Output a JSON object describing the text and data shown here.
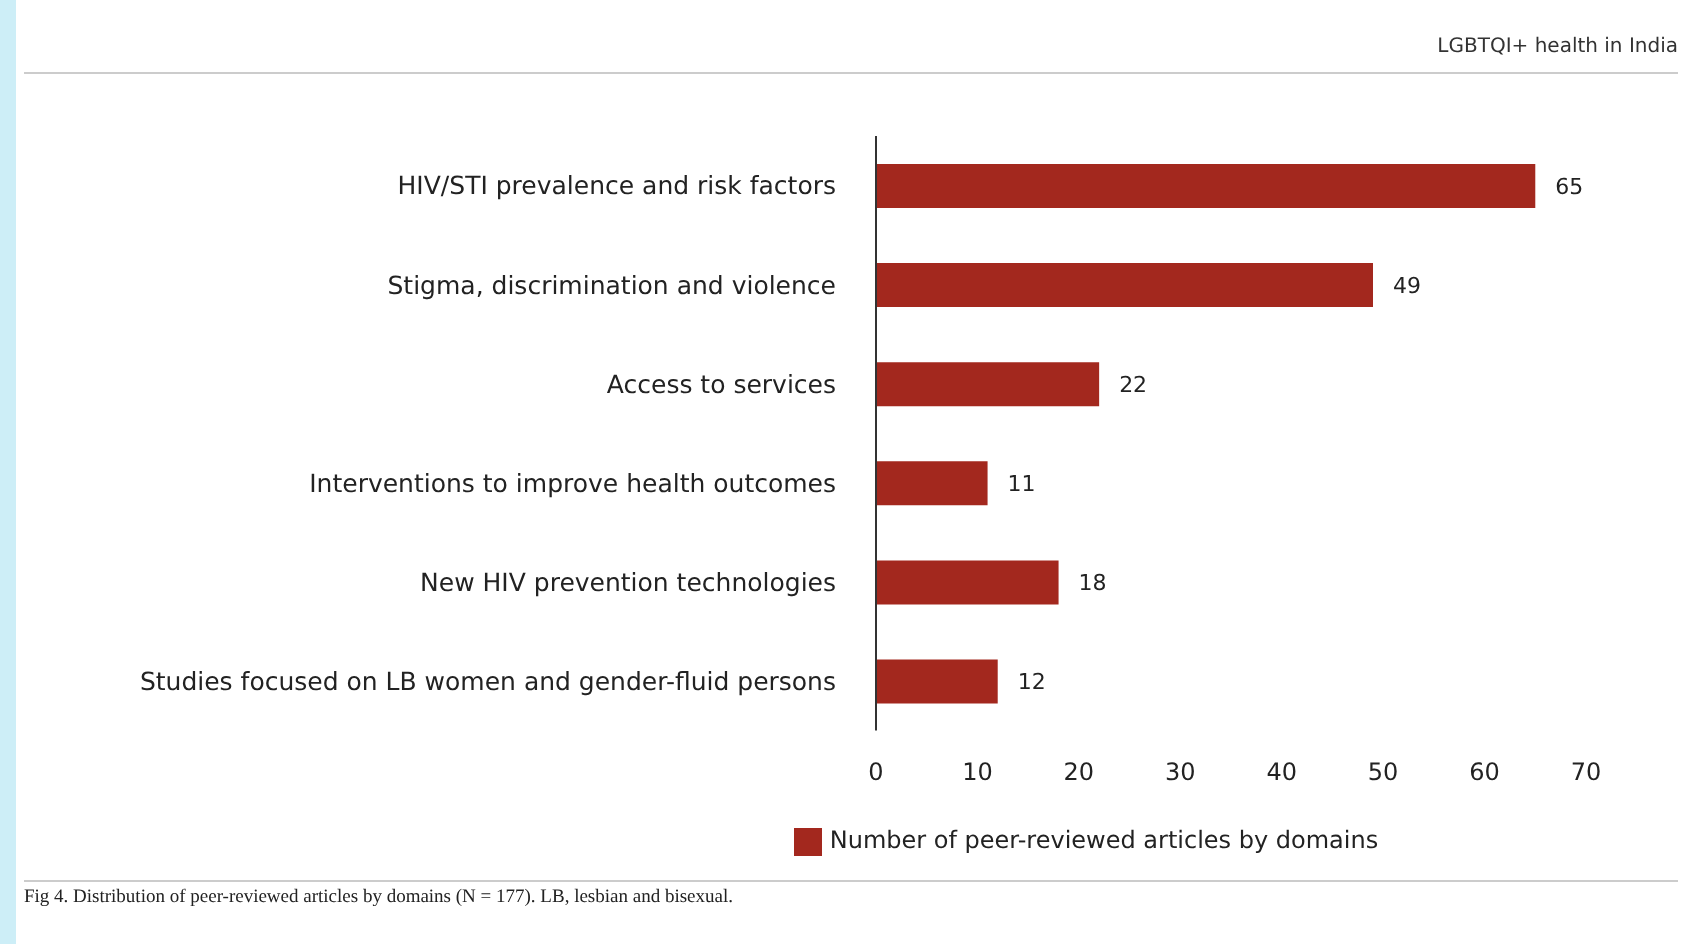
{
  "chart_data": {
    "type": "bar",
    "orientation": "horizontal",
    "categories": [
      "HIV/STI prevalence and risk factors",
      "Stigma, discrimination and violence",
      "Access to services",
      "Interventions to improve health outcomes",
      "New HIV prevention technologies",
      "Studies focused on LB women and gender-fluid persons"
    ],
    "series": [
      {
        "name": "Number of peer-reviewed articles by domains",
        "color": "#a3281e",
        "values": [
          65,
          49,
          22,
          11,
          18,
          12
        ]
      }
    ],
    "xlim": [
      0,
      70
    ],
    "xticks": [
      0,
      10,
      20,
      30,
      40,
      50,
      60,
      70
    ],
    "data_labels": true,
    "legend": "bottom",
    "grid": false,
    "annotations": [
      "LGBTQI+ health in India",
      "Fig 4. Distribution of peer-reviewed articles by domains (N = 177). LB, lesbian and bisexual."
    ]
  }
}
